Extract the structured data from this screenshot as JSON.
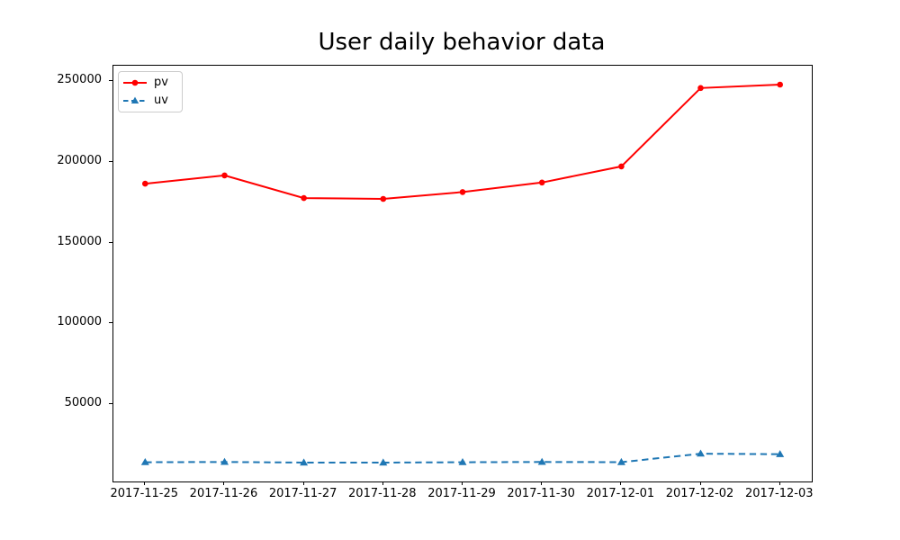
{
  "figure": {
    "background": "#ffffff"
  },
  "chart_data": {
    "type": "line",
    "title": "User daily behavior data",
    "categories": [
      "2017-11-25",
      "2017-11-26",
      "2017-11-27",
      "2017-11-28",
      "2017-11-29",
      "2017-11-30",
      "2017-12-01",
      "2017-12-02",
      "2017-12-03"
    ],
    "series": [
      {
        "name": "pv",
        "color": "#ff0000",
        "line_style": "solid",
        "marker": "circle",
        "values": [
          186500,
          191600,
          177600,
          177100,
          181300,
          187200,
          197200,
          245700,
          247800
        ]
      },
      {
        "name": "uv",
        "color": "#1f77b4",
        "line_style": "dashed",
        "marker": "triangle-up",
        "values": [
          14100,
          14300,
          13900,
          13900,
          14100,
          14300,
          14200,
          19400,
          19100
        ]
      }
    ],
    "xlabel": "",
    "ylabel": "",
    "ylim": [
      2200,
      259500
    ],
    "yticks": [
      50000,
      100000,
      150000,
      200000,
      250000
    ],
    "grid": false,
    "legend": {
      "position": "upper-left",
      "entries": [
        "pv",
        "uv"
      ]
    }
  }
}
